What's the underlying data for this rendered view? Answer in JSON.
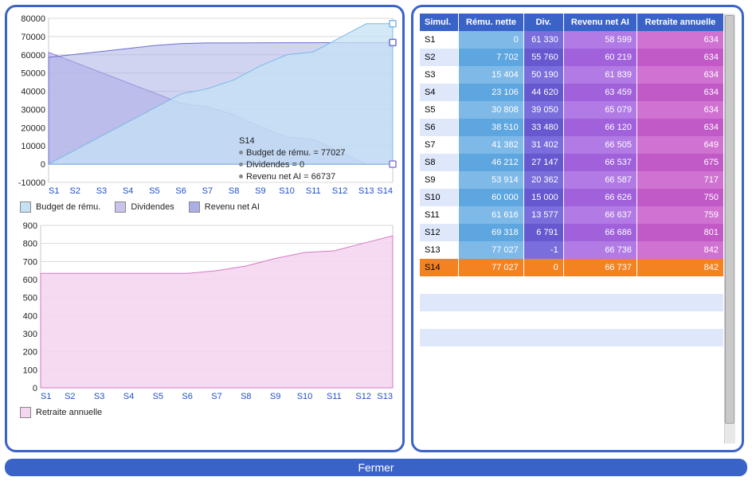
{
  "colors": {
    "frame": "#3a63c8",
    "header_bg": "#3a63c8",
    "header_text": "#ffffff",
    "grid": "#d8d8d8",
    "axis_text": "#222222",
    "x_cat_text": "#1e4fc8",
    "series_budget_fill": "#c6e1f4",
    "series_budget_stroke": "#7bb8e8",
    "series_dividendes_fill": "#cbc3ec",
    "series_dividendes_stroke": "#8a7cd6",
    "series_revenu_fill": "#aab0e6",
    "series_revenu_stroke": "#6b6fd0",
    "series_retraite_fill": "#f4d6ef",
    "series_retraite_stroke": "#d779c3",
    "col_simul_even": "#ffffff",
    "col_simul_odd": "#dfe8fb",
    "col_remu_even": "#7fb9e8",
    "col_remu_odd": "#5ea6df",
    "col_div_even": "#7a6edc",
    "col_div_odd": "#6658ce",
    "col_revenu_even": "#b17ae4",
    "col_revenu_odd": "#a061db",
    "col_retraite_even": "#cf72d1",
    "col_retraite_odd": "#c159c7",
    "highlight_row": "#f58220"
  },
  "chart1": {
    "type": "area",
    "categories": [
      "S1",
      "S2",
      "S3",
      "S4",
      "S5",
      "S6",
      "S7",
      "S8",
      "S9",
      "S10",
      "S11",
      "S12",
      "S13",
      "S14"
    ],
    "ymin": -10000,
    "ymax": 80000,
    "ystep": 10000,
    "series": [
      {
        "name": "Budget de rému.",
        "key": "budget",
        "values": [
          0,
          7702,
          15404,
          23106,
          30808,
          38510,
          41382,
          46212,
          53914,
          60000,
          61616,
          69318,
          77027,
          77027
        ]
      },
      {
        "name": "Dividendes",
        "key": "dividendes",
        "values": [
          61330,
          55760,
          50190,
          44620,
          39050,
          33480,
          31402,
          27147,
          20362,
          15000,
          13577,
          6791,
          -1,
          0
        ]
      },
      {
        "name": "Revenu net AI",
        "key": "revenu",
        "values": [
          58599,
          60219,
          61839,
          63459,
          65079,
          66120,
          66505,
          66537,
          66587,
          66626,
          66637,
          66686,
          66736,
          66737
        ]
      }
    ],
    "tooltip": {
      "title": "S14",
      "lines": [
        "Budget de rému. = 77027",
        "Dividendes = 0",
        "Revenu net AI = 66737"
      ]
    },
    "end_markers": [
      {
        "series": "budget",
        "y": 77027
      },
      {
        "series": "revenu",
        "y": 66737
      },
      {
        "series": "dividendes",
        "y": 0
      }
    ]
  },
  "chart2": {
    "type": "area",
    "categories": [
      "S1",
      "S2",
      "S3",
      "S4",
      "S5",
      "S6",
      "S7",
      "S8",
      "S9",
      "S10",
      "S11",
      "S12",
      "S13"
    ],
    "ymin": 0,
    "ymax": 900,
    "ystep": 100,
    "series": [
      {
        "name": "Retraite annuelle",
        "key": "retraite",
        "values": [
          634,
          634,
          634,
          634,
          634,
          634,
          649,
          675,
          717,
          750,
          759,
          801,
          842
        ]
      }
    ]
  },
  "legend": {
    "budget": "Budget de rému.",
    "dividendes": "Dividendes",
    "revenu": "Revenu net AI",
    "retraite": "Retraite annuelle"
  },
  "table": {
    "columns": [
      "Simul.",
      "Rému. nette",
      "Div.",
      "Revenu net AI",
      "Retraite annuelle"
    ],
    "rows": [
      [
        "S1",
        "0",
        "61 330",
        "58 599",
        "634"
      ],
      [
        "S2",
        "7 702",
        "55 760",
        "60 219",
        "634"
      ],
      [
        "S3",
        "15 404",
        "50 190",
        "61 839",
        "634"
      ],
      [
        "S4",
        "23 106",
        "44 620",
        "63 459",
        "634"
      ],
      [
        "S5",
        "30 808",
        "39 050",
        "65 079",
        "634"
      ],
      [
        "S6",
        "38 510",
        "33 480",
        "66 120",
        "634"
      ],
      [
        "S7",
        "41 382",
        "31 402",
        "66 505",
        "649"
      ],
      [
        "S8",
        "46 212",
        "27 147",
        "66 537",
        "675"
      ],
      [
        "S9",
        "53 914",
        "20 362",
        "66 587",
        "717"
      ],
      [
        "S10",
        "60 000",
        "15 000",
        "66 626",
        "750"
      ],
      [
        "S11",
        "61 616",
        "13 577",
        "66 637",
        "759"
      ],
      [
        "S12",
        "69 318",
        "6 791",
        "66 686",
        "801"
      ],
      [
        "S13",
        "77 027",
        "-1",
        "66 736",
        "842"
      ],
      [
        "S14",
        "77 027",
        "0",
        "66 737",
        "842"
      ]
    ],
    "highlight_index": 13
  },
  "footer": {
    "label": "Fermer"
  }
}
